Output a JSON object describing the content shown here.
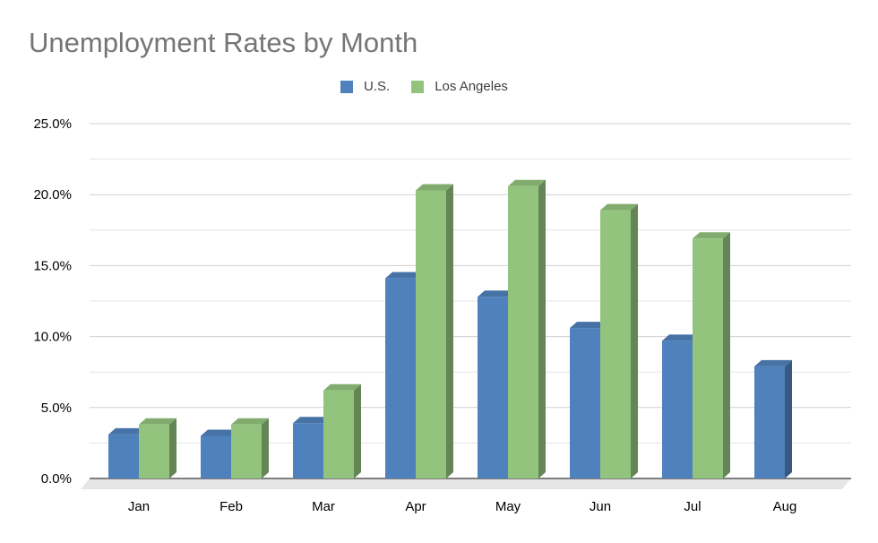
{
  "chart_data": {
    "type": "bar",
    "title": "Unemployment Rates by Month",
    "xlabel": "",
    "ylabel": "",
    "categories": [
      "Jan",
      "Feb",
      "Mar",
      "Apr",
      "May",
      "Jun",
      "Jul",
      "Aug"
    ],
    "series": [
      {
        "name": "U.S.",
        "color": "#4f81bd",
        "values": [
          3.1,
          3.0,
          3.9,
          14.1,
          12.8,
          10.6,
          9.7,
          7.9
        ]
      },
      {
        "name": "Los Angeles",
        "color": "#93c47d",
        "values": [
          3.8,
          3.8,
          6.2,
          20.3,
          20.6,
          18.9,
          16.9,
          null
        ]
      }
    ],
    "ylim": [
      0,
      25
    ],
    "y_ticks": [
      0,
      5,
      10,
      15,
      20,
      25
    ],
    "y_tick_labels": [
      "0.0%",
      "5.0%",
      "10.0%",
      "15.0%",
      "20.0%",
      "25.0%"
    ],
    "grid": true,
    "legend_position": "top-center",
    "style": "3d-clustered-column"
  }
}
